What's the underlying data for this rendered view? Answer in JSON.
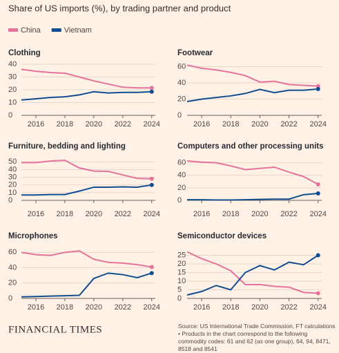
{
  "title": "Share of US imports (%), by trading partner and product",
  "footer": {
    "brand": "FINANCIAL TIMES",
    "source": "Source: US International Trade Commission, FT calculations • Products in the chart correspond to the following commodity codes: 61 and 62 (as one group), 64, 94, 8471, 8518 and 8541"
  },
  "chart_data": [
    {
      "type": "line",
      "title": "Clothing",
      "x": [
        2015,
        2016,
        2017,
        2018,
        2019,
        2020,
        2021,
        2022,
        2023,
        2024
      ],
      "series": [
        {
          "name": "China",
          "color": "#e5739c",
          "values": [
            36,
            34.5,
            33.5,
            33,
            30,
            27,
            24.5,
            22,
            21.5,
            21.5
          ]
        },
        {
          "name": "Vietnam",
          "color": "#0f4c91",
          "values": [
            12,
            13,
            14,
            14.5,
            16,
            18.5,
            17.5,
            18,
            18,
            18.5
          ]
        }
      ],
      "xlim": [
        2015,
        2024.25
      ],
      "xticks": [
        2016,
        2018,
        2020,
        2022,
        2024
      ],
      "ylim": [
        0,
        40
      ],
      "yticks": [
        0,
        10,
        20,
        30,
        40
      ],
      "grid": true
    },
    {
      "type": "line",
      "title": "Footwear",
      "x": [
        2015,
        2016,
        2017,
        2018,
        2019,
        2020,
        2021,
        2022,
        2023,
        2024
      ],
      "series": [
        {
          "color": "#e5739c",
          "values": [
            62,
            58,
            56,
            53,
            49,
            41,
            42,
            38,
            37,
            36
          ]
        },
        {
          "color": "#0f4c91",
          "values": [
            17,
            20,
            22,
            24,
            27,
            32,
            28,
            31,
            31,
            32.5
          ]
        }
      ],
      "xlim": [
        2015,
        2024.25
      ],
      "xticks": [
        2016,
        2018,
        2020,
        2022,
        2024
      ],
      "ylim": [
        0,
        63
      ],
      "yticks": [
        0,
        20,
        40,
        60
      ],
      "grid": true
    },
    {
      "type": "line",
      "title": "Furniture, bedding and lighting",
      "x": [
        2015,
        2016,
        2017,
        2018,
        2019,
        2020,
        2021,
        2022,
        2023,
        2024
      ],
      "series": [
        {
          "color": "#e5739c",
          "values": [
            49,
            49,
            51,
            52,
            42,
            38,
            37.5,
            33,
            28.5,
            28
          ]
        },
        {
          "color": "#0f4c91",
          "values": [
            7,
            7,
            7.5,
            7.5,
            12,
            17,
            17,
            17.5,
            17,
            20
          ]
        }
      ],
      "xlim": [
        2015,
        2024.25
      ],
      "xticks": [
        2016,
        2018,
        2020,
        2022,
        2024
      ],
      "ylim": [
        0,
        52
      ],
      "yticks": [
        0,
        10,
        20,
        30,
        40,
        50
      ],
      "grid": true
    },
    {
      "type": "line",
      "title": "Computers and other processing units",
      "x": [
        2015,
        2016,
        2017,
        2018,
        2019,
        2020,
        2021,
        2022,
        2023,
        2024
      ],
      "series": [
        {
          "color": "#e5739c",
          "values": [
            63,
            61,
            60,
            55,
            49,
            51,
            53,
            45,
            38,
            25.5
          ]
        },
        {
          "color": "#0f4c91",
          "values": [
            1,
            1,
            0.5,
            0.5,
            1,
            1.5,
            2,
            2,
            9,
            11
          ]
        }
      ],
      "xlim": [
        2015,
        2024.25
      ],
      "xticks": [
        2016,
        2018,
        2020,
        2022,
        2024
      ],
      "ylim": [
        0,
        64
      ],
      "yticks": [
        0,
        20,
        40,
        60
      ],
      "grid": true
    },
    {
      "type": "line",
      "title": "Microphones",
      "x": [
        2015,
        2016,
        2017,
        2018,
        2019,
        2020,
        2021,
        2022,
        2023,
        2024
      ],
      "series": [
        {
          "color": "#e5739c",
          "values": [
            60,
            57,
            56,
            60,
            62,
            51,
            47,
            46,
            44,
            41
          ]
        },
        {
          "color": "#0f4c91",
          "values": [
            2,
            2.5,
            3,
            3.5,
            4,
            26,
            33,
            31,
            27,
            33
          ]
        }
      ],
      "xlim": [
        2015,
        2024.25
      ],
      "xticks": [
        2016,
        2018,
        2020,
        2022,
        2024
      ],
      "ylim": [
        0,
        63
      ],
      "yticks": [
        0,
        20,
        40,
        60
      ],
      "grid": true
    },
    {
      "type": "line",
      "title": "Semiconductor devices",
      "x": [
        2015,
        2016,
        2017,
        2018,
        2019,
        2020,
        2021,
        2022,
        2023,
        2024
      ],
      "series": [
        {
          "color": "#e5739c",
          "values": [
            27,
            23,
            20,
            16,
            8,
            8,
            7,
            6.5,
            3.5,
            3
          ]
        },
        {
          "color": "#0f4c91",
          "values": [
            2,
            4,
            7.5,
            5,
            15,
            19,
            16.5,
            21,
            19.5,
            25
          ]
        }
      ],
      "xlim": [
        2015,
        2024.25
      ],
      "xticks": [
        2016,
        2018,
        2020,
        2022,
        2024
      ],
      "ylim": [
        0,
        28
      ],
      "yticks": [
        0,
        5,
        10,
        15,
        20,
        25
      ],
      "grid": true
    }
  ]
}
